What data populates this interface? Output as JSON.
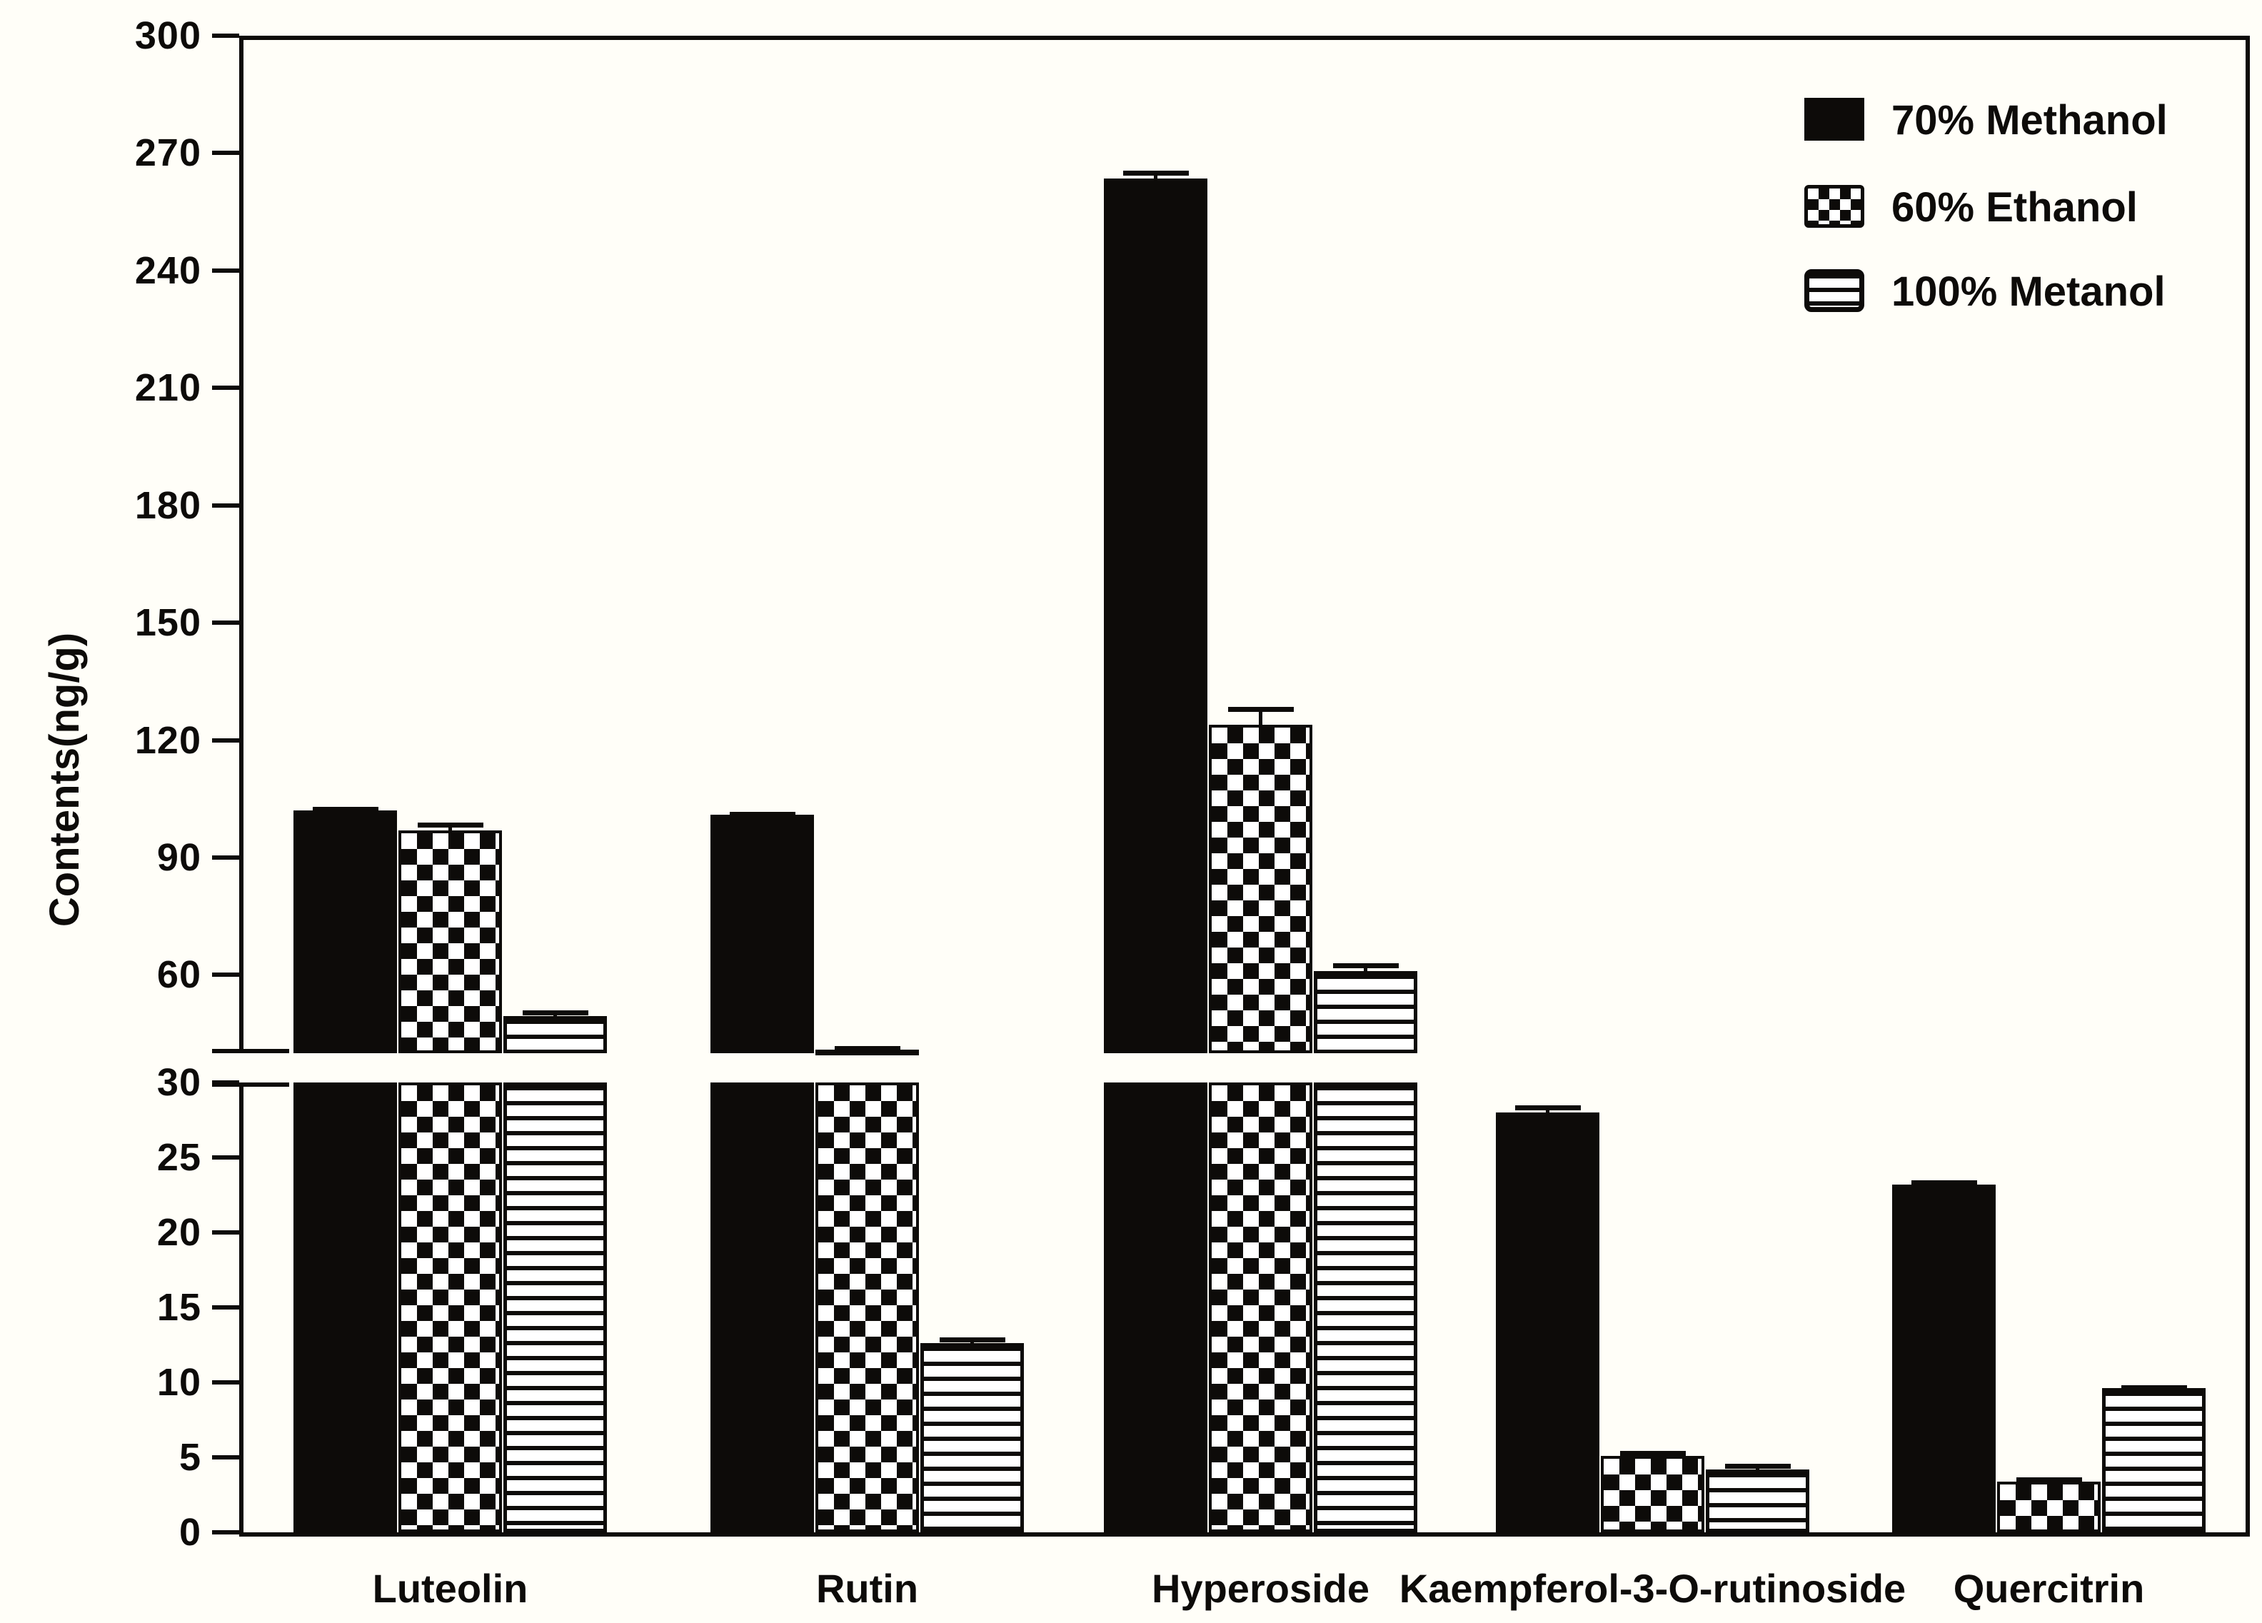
{
  "figure": {
    "ylabel": "Contents(ng/g)",
    "background_color": "#fffef8",
    "ink_color": "#0d0b09"
  },
  "legend": {
    "position": "top-right",
    "items": [
      {
        "label": "70% Methanol",
        "pattern": "solid",
        "swatch_icon": "solid-black-swatch"
      },
      {
        "label": "60% Ethanol",
        "pattern": "checker",
        "swatch_icon": "checkerboard-swatch"
      },
      {
        "label": "100% Metanol",
        "pattern": "stripes",
        "swatch_icon": "horizontal-lines-swatch"
      }
    ]
  },
  "chart_data": {
    "type": "bar",
    "title": "",
    "xlabel": "",
    "ylabel": "Contents(ng/g)",
    "grid": false,
    "legend_position": "top-right",
    "categories": [
      "Luteolin",
      "Rutin",
      "Hyperoside",
      "Kaempferol-3-O-rutinoside",
      "Quercitrin"
    ],
    "series": [
      {
        "name": "70% Methanol",
        "pattern": "solid",
        "values": [
          102,
          101,
          263.5,
          28,
          23.2
        ],
        "errors": [
          1.0,
          0.6,
          2.0,
          0.5,
          0.3
        ]
      },
      {
        "name": "60% Ethanol",
        "pattern": "checker",
        "values": [
          97,
          41,
          124,
          5.1,
          3.4
        ],
        "errors": [
          2.0,
          0.8,
          4.5,
          0.35,
          0.25
        ]
      },
      {
        "name": "100% Metanol",
        "pattern": "stripes",
        "values": [
          49.5,
          12.6,
          61,
          4.2,
          9.6
        ],
        "errors": [
          1.5,
          0.4,
          2.0,
          0.35,
          0.2
        ]
      }
    ],
    "y_axis": {
      "broken": true,
      "unit": "ng/g",
      "top_panel": {
        "range": [
          40,
          300
        ],
        "ticks": [
          300,
          270,
          240,
          210,
          180,
          150,
          120,
          90,
          60
        ]
      },
      "bottom_panel": {
        "range": [
          0,
          30
        ],
        "ticks": [
          30,
          25,
          20,
          15,
          10,
          5,
          0
        ]
      }
    }
  }
}
